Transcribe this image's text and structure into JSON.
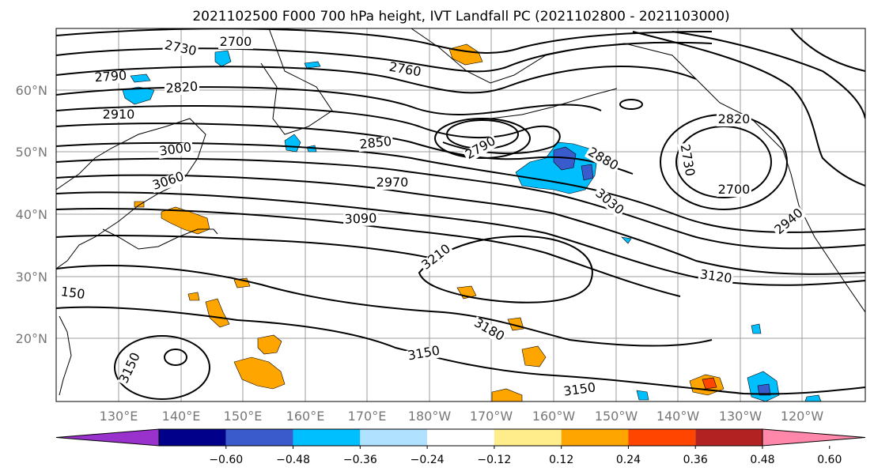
{
  "title": "2021102500 F000 700 hPa height, IVT Landfall PC (2021102800 - 2021103000)",
  "lat_labels": [
    "60°N",
    "50°N",
    "40°N",
    "30°N",
    "20°N"
  ],
  "lon_labels": [
    "130°E",
    "140°E",
    "150°E",
    "160°E",
    "170°E",
    "180°W",
    "170°W",
    "160°W",
    "150°W",
    "140°W",
    "130°W",
    "120°W"
  ],
  "contour_labels": [
    "2700",
    "2730",
    "2760",
    "2790",
    "2820",
    "2910",
    "2850",
    "3000",
    "3060",
    "2970",
    "3090",
    "3210",
    "150",
    "3150",
    "3180",
    "3150",
    "3150",
    "2790",
    "2880",
    "3030",
    "3120",
    "2730",
    "2700",
    "2940",
    "2820"
  ],
  "colorbar": {
    "ticks": [
      "−0.60",
      "−0.48",
      "−0.36",
      "−0.24",
      "−0.12",
      "0.12",
      "0.24",
      "0.36",
      "0.48",
      "0.60"
    ],
    "colors": [
      "#9932CC",
      "#00008B",
      "#3A5BCB",
      "#00BFFF",
      "#B0E2FF",
      "#FFFFFF",
      "#FFEC8B",
      "#FFA500",
      "#FF4500",
      "#B22222",
      "#FF88AA"
    ]
  }
}
